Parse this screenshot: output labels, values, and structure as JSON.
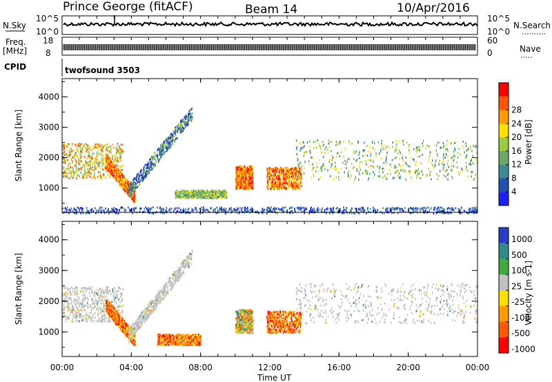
{
  "header": {
    "station": "Prince George (fitACF)",
    "beam": "Beam 14",
    "date": "10/Apr/2016"
  },
  "strips": {
    "nsky": {
      "label": "N.Sky",
      "ticks": [
        "10^5",
        "10^0"
      ]
    },
    "nsearch": {
      "label": "N.Search",
      "ticks": [
        "10^5",
        "10^0"
      ]
    },
    "freq": {
      "label_line1": "Freq.",
      "label_line2": "[MHz]",
      "ticks": [
        "18",
        "8"
      ]
    },
    "nave": {
      "label": "Nave",
      "ticks": [
        "60",
        "0"
      ]
    },
    "cpid": {
      "label": "CPID",
      "value": "twofsound 3503"
    }
  },
  "chart_data": [
    {
      "type": "heatmap",
      "panel": "power",
      "xlabel": "Time UT",
      "ylabel": "Slant Range [km]",
      "xlim": [
        0,
        24
      ],
      "ylim": [
        200,
        4600
      ],
      "x_tick_labels": [
        "00:00",
        "04:00",
        "08:00",
        "12:00",
        "16:00",
        "20:00",
        "00:00"
      ],
      "y_tick_labels": [
        "1000",
        "2000",
        "3000",
        "4000"
      ],
      "colorbar": {
        "label": "Power [dB]",
        "tick_labels": [
          "4",
          "8",
          "12",
          "16",
          "20",
          "24",
          "28"
        ],
        "range": [
          0,
          32
        ],
        "colors": [
          "#2020ff",
          "#2050b0",
          "#3a8a90",
          "#6aa868",
          "#9ccc3c",
          "#ffe000",
          "#ff9a00",
          "#ff5500",
          "#ff0000"
        ]
      },
      "echo_regions": [
        {
          "name": "pre-dawn band",
          "t": [
            0.0,
            3.5
          ],
          "range": [
            1350,
            2500
          ],
          "level": "medium-high"
        },
        {
          "name": "dawn descending streak",
          "t": [
            2.5,
            4.2
          ],
          "range": [
            750,
            1900
          ],
          "level": "high"
        },
        {
          "name": "morning rising band",
          "t": [
            3.8,
            7.5
          ],
          "range": [
            900,
            3500
          ],
          "level": "low-medium"
        },
        {
          "name": "near-range morning echo",
          "t": [
            6.5,
            9.5
          ],
          "range": [
            700,
            950
          ],
          "level": "medium"
        },
        {
          "name": "noon patch 1",
          "t": [
            10.0,
            11.0
          ],
          "range": [
            1000,
            1750
          ],
          "level": "high"
        },
        {
          "name": "noon patch 2",
          "t": [
            11.8,
            13.8
          ],
          "range": [
            1000,
            1700
          ],
          "level": "high"
        },
        {
          "name": "afternoon-evening band",
          "t": [
            13.5,
            24.0
          ],
          "range": [
            1300,
            2600
          ],
          "level": "medium"
        },
        {
          "name": "ground scatter",
          "t": [
            0.0,
            24.0
          ],
          "range": [
            200,
            400
          ],
          "level": "low"
        }
      ]
    },
    {
      "type": "heatmap",
      "panel": "velocity",
      "xlabel": "Time UT",
      "ylabel": "Slant Range [km]",
      "xlim": [
        0,
        24
      ],
      "ylim": [
        200,
        4600
      ],
      "x_tick_labels": [
        "00:00",
        "04:00",
        "08:00",
        "12:00",
        "16:00",
        "20:00",
        "00:00"
      ],
      "y_tick_labels": [
        "1000",
        "2000",
        "3000",
        "4000"
      ],
      "colorbar": {
        "label": "Velocity [m s-1]",
        "tick_labels": [
          "1000",
          "500",
          "100",
          "25",
          "-25",
          "-100",
          "-500",
          "-1000"
        ],
        "colors": [
          "#2a3cc8",
          "#2f8a8a",
          "#40aa40",
          "#c0c0c0",
          "#ffdd00",
          "#ff9a00",
          "#ff5a00",
          "#ff0000"
        ]
      },
      "echo_regions": [
        {
          "name": "pre-dawn band",
          "t": [
            0.0,
            3.5
          ],
          "range": [
            1350,
            2500
          ],
          "level": "ground-scatter"
        },
        {
          "name": "dawn descending streak",
          "t": [
            2.5,
            4.2
          ],
          "range": [
            750,
            1900
          ],
          "level": "negative"
        },
        {
          "name": "morning rising band",
          "t": [
            3.8,
            7.5
          ],
          "range": [
            900,
            3500
          ],
          "level": "ground-scatter"
        },
        {
          "name": "near-range morning echo",
          "t": [
            5.5,
            8.0
          ],
          "range": [
            600,
            950
          ],
          "level": "negative"
        },
        {
          "name": "noon patch 1",
          "t": [
            10.0,
            11.0
          ],
          "range": [
            1000,
            1750
          ],
          "level": "mixed"
        },
        {
          "name": "noon patch 2",
          "t": [
            11.8,
            13.8
          ],
          "range": [
            1000,
            1700
          ],
          "level": "negative"
        },
        {
          "name": "afternoon-evening band",
          "t": [
            13.5,
            24.0
          ],
          "range": [
            1300,
            2600
          ],
          "level": "ground-scatter"
        }
      ]
    }
  ]
}
